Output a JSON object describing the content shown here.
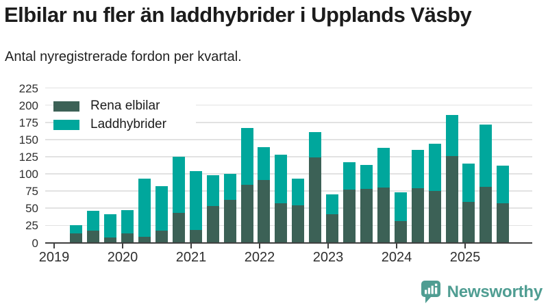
{
  "header": {
    "title": "Elbilar nu fler än laddhybrider i Upplands Väsby",
    "subtitle": "Antal nyregistrerade fordon per kvartal."
  },
  "legend": [
    {
      "label": "Rena elbilar",
      "color": "#3c6156"
    },
    {
      "label": "Laddhybrider",
      "color": "#00a79c"
    }
  ],
  "footer": {
    "brand": "Newsworthy",
    "brand_color": "#4f9d92"
  },
  "chart_data": {
    "type": "bar",
    "stacked": true,
    "title": "Elbilar nu fler än laddhybrider i Upplands Väsby",
    "subtitle": "Antal nyregistrerade fordon per kvartal.",
    "categories": [
      "2019-Q2",
      "2019-Q3",
      "2019-Q4",
      "2020-Q1",
      "2020-Q2",
      "2020-Q3",
      "2020-Q4",
      "2021-Q1",
      "2021-Q2",
      "2021-Q3",
      "2021-Q4",
      "2022-Q1",
      "2022-Q2",
      "2022-Q3",
      "2022-Q4",
      "2023-Q1",
      "2023-Q2",
      "2023-Q3",
      "2023-Q4",
      "2024-Q1",
      "2024-Q2",
      "2024-Q3",
      "2024-Q4",
      "2025-Q1",
      "2025-Q2",
      "2025-Q3"
    ],
    "series": [
      {
        "name": "Rena elbilar",
        "color": "#3c6156",
        "values": [
          13,
          17,
          7,
          13,
          8,
          17,
          43,
          18,
          53,
          62,
          84,
          91,
          57,
          54,
          124,
          41,
          77,
          78,
          80,
          31,
          79,
          75,
          126,
          59,
          81,
          57
        ]
      },
      {
        "name": "Laddhybrider",
        "color": "#00a79c",
        "values": [
          12,
          29,
          34,
          34,
          85,
          65,
          82,
          86,
          45,
          38,
          83,
          48,
          71,
          39,
          37,
          29,
          40,
          35,
          58,
          42,
          56,
          69,
          60,
          56,
          91,
          55
        ]
      }
    ],
    "x_tick_labels": [
      "2019",
      "2020",
      "2021",
      "2022",
      "2023",
      "2024",
      "2025"
    ],
    "y_ticks": [
      0,
      25,
      50,
      75,
      100,
      125,
      150,
      175,
      200,
      225
    ],
    "ylim": [
      0,
      225
    ],
    "xlabel": "",
    "ylabel": "",
    "grid": "horizontal",
    "legend_position": "top-left-inside"
  }
}
